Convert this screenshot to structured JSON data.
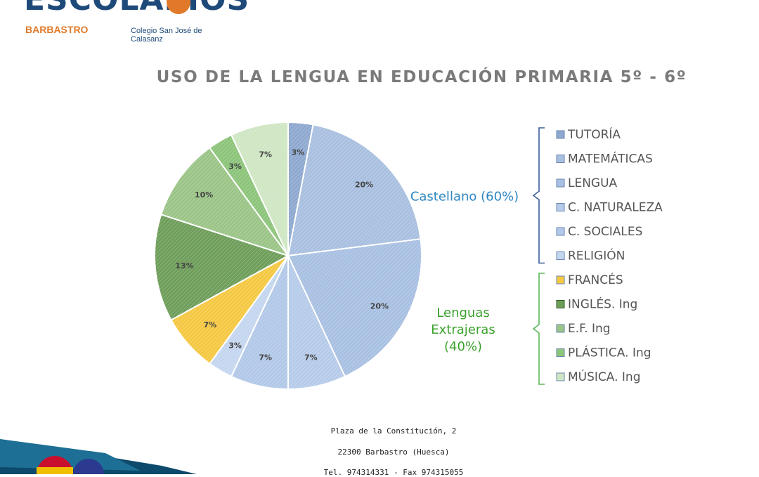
{
  "header": {
    "logo_text": "ESCOLAPIOS",
    "logo_city": "BARBASTRO",
    "logo_school": "Colegio San José de Calasanz"
  },
  "footer": {
    "address": "Plaza de la Constitución, 2",
    "city": "22300 Barbastro (Huesca)",
    "phone": "Tel. 974314331  -  Fax 974315055"
  },
  "colors": {
    "castellano_label": "#2e86c1",
    "extranjeras_label": "#3aa12c",
    "bracket_castellano": "#3a5f9a",
    "bracket_extranjeras": "#5cb85c"
  },
  "chart_data": {
    "type": "pie",
    "title": "USO DE LA LENGUA EN EDUCACIÓN PRIMARIA 5º - 6º",
    "legend_position": "right",
    "slices": [
      {
        "name": "TUTORÍA",
        "value": 3,
        "label": "3%",
        "color": "#8ea8cf"
      },
      {
        "name": "MATEMÁTICAS",
        "value": 20,
        "label": "20%",
        "color": "#a9bfe0"
      },
      {
        "name": "LENGUA",
        "value": 20,
        "label": "20%",
        "color": "#a8c0e2"
      },
      {
        "name": "C. NATURALEZA",
        "value": 7,
        "label": "7%",
        "color": "#b6cbe9"
      },
      {
        "name": "C. SOCIALES",
        "value": 7,
        "label": "7%",
        "color": "#b2c8e8"
      },
      {
        "name": "RELIGIÓN",
        "value": 3,
        "label": "3%",
        "color": "#c4d6ef"
      },
      {
        "name": "FRANCÉS",
        "value": 7,
        "label": "7%",
        "color": "#f5c842"
      },
      {
        "name": "INGLÉS. Ing",
        "value": 13,
        "label": "13%",
        "color": "#6e9e5a"
      },
      {
        "name": "E.F. Ing",
        "value": 10,
        "label": "10%",
        "color": "#9bc487"
      },
      {
        "name": "PLÁSTICA. Ing",
        "value": 3,
        "label": "3%",
        "color": "#8cc47a"
      },
      {
        "name": "MÚSICA. Ing",
        "value": 7,
        "label": "7%",
        "color": "#cfe6c3"
      }
    ],
    "groups": [
      {
        "label_lines": [
          "Castellano (60%)"
        ],
        "range": [
          0,
          5
        ]
      },
      {
        "label_lines": [
          "Lenguas",
          "Extrajeras",
          "(40%)"
        ],
        "range": [
          6,
          10
        ]
      }
    ]
  }
}
